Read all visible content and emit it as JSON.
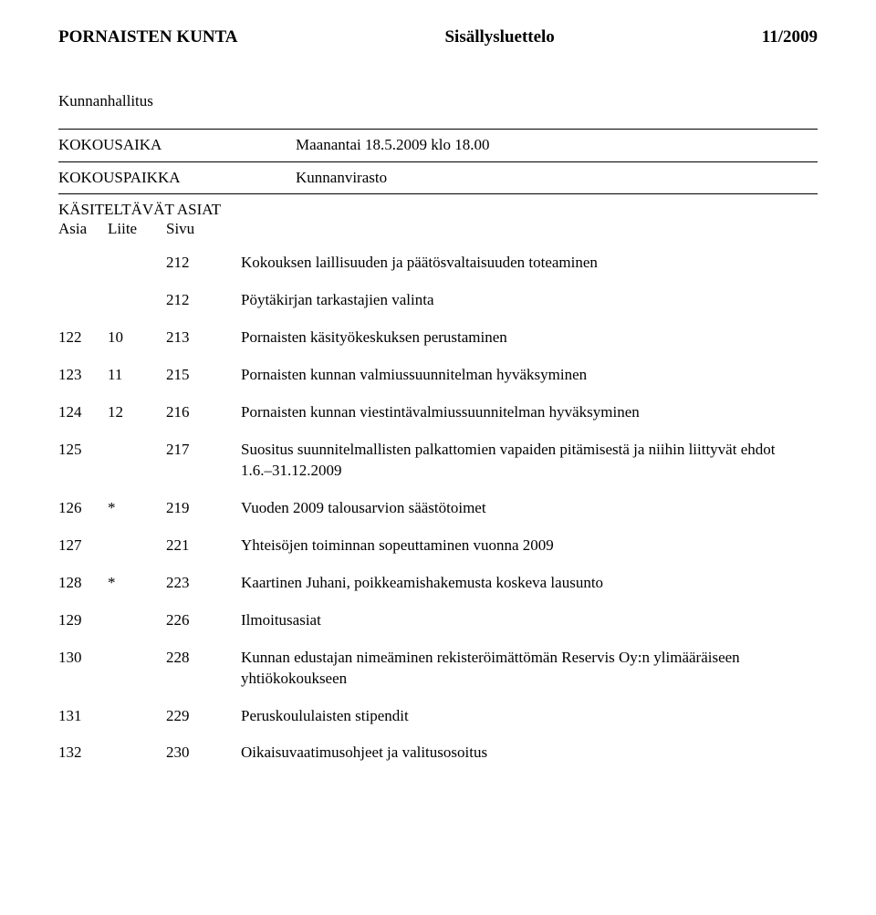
{
  "header": {
    "left": "PORNAISTEN KUNTA",
    "center": "Sisällysluettelo",
    "right": "11/2009"
  },
  "subheader": "Kunnanhallitus",
  "meta": {
    "time_label": "KOKOUSAIKA",
    "time_value": "Maanantai 18.5.2009 klo 18.00",
    "place_label": "KOKOUSPAIKKA",
    "place_value": "Kunnanvirasto"
  },
  "asiat_label": "KÄSITELTÄVÄT ASIAT",
  "columns": {
    "asia": "Asia",
    "liite": "Liite",
    "sivu": "Sivu"
  },
  "rows": [
    {
      "asia": "",
      "liite": "",
      "sivu": "212",
      "desc": "Kokouksen laillisuuden ja päätösvaltaisuuden toteaminen"
    },
    {
      "asia": "",
      "liite": "",
      "sivu": "212",
      "desc": "Pöytäkirjan tarkastajien valinta"
    },
    {
      "asia": "122",
      "liite": "10",
      "sivu": "213",
      "desc": "Pornaisten käsityökeskuksen perustaminen"
    },
    {
      "asia": "123",
      "liite": "11",
      "sivu": "215",
      "desc": "Pornaisten kunnan valmiussuunnitelman hyväksyminen"
    },
    {
      "asia": "124",
      "liite": "12",
      "sivu": "216",
      "desc": "Pornaisten kunnan viestintävalmiussuunnitelman hyväksyminen"
    },
    {
      "asia": "125",
      "liite": "",
      "sivu": "217",
      "desc": "Suositus suunnitelmallisten palkattomien vapaiden pitämisestä ja niihin liittyvät ehdot 1.6.–31.12.2009"
    },
    {
      "asia": "126",
      "liite": "*",
      "sivu": "219",
      "desc": "Vuoden 2009 talousarvion säästötoimet"
    },
    {
      "asia": "127",
      "liite": "",
      "sivu": "221",
      "desc": "Yhteisöjen toiminnan sopeuttaminen vuonna 2009"
    },
    {
      "asia": "128",
      "liite": "*",
      "sivu": "223",
      "desc": "Kaartinen Juhani, poikkeamishakemusta koskeva lausunto"
    },
    {
      "asia": "129",
      "liite": "",
      "sivu": "226",
      "desc": "Ilmoitusasiat"
    },
    {
      "asia": "130",
      "liite": "",
      "sivu": "228",
      "desc": "Kunnan edustajan nimeäminen rekisteröimättömän Reservis Oy:n ylimääräiseen yhtiökokoukseen"
    },
    {
      "asia": "131",
      "liite": "",
      "sivu": "229",
      "desc": "Peruskoululaisten stipendit"
    },
    {
      "asia": "132",
      "liite": "",
      "sivu": "230",
      "desc": "Oikaisuvaatimusohjeet ja valitusosoitus"
    }
  ]
}
